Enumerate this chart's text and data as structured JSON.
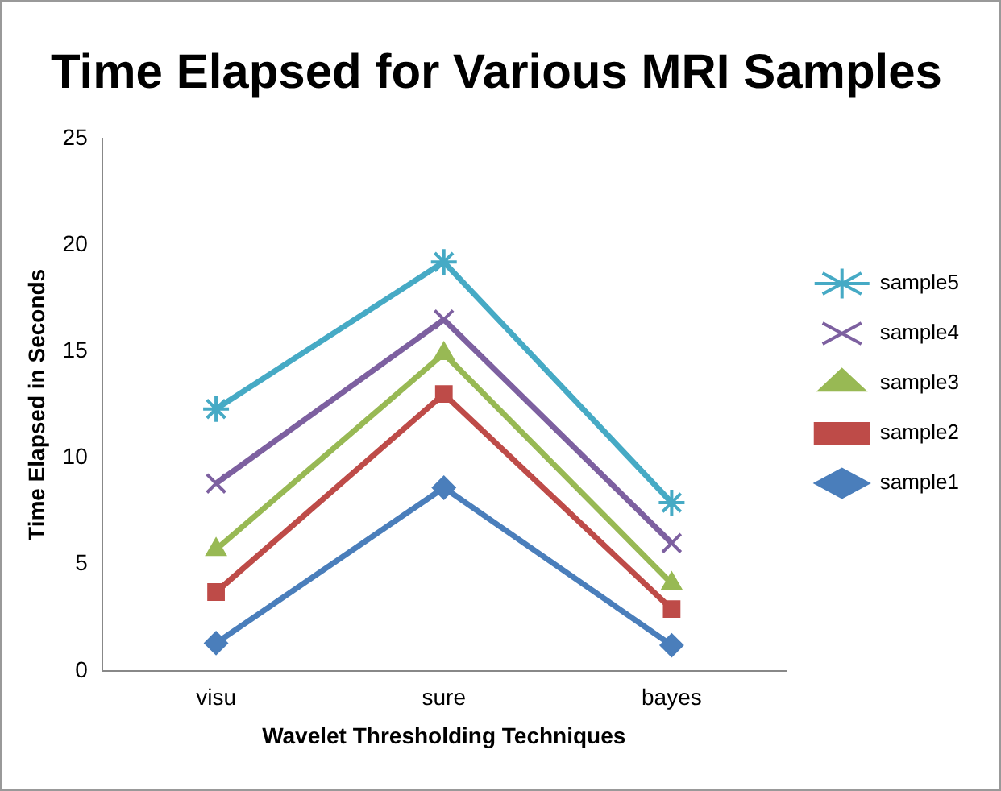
{
  "chart_data": {
    "type": "line",
    "title": "Time Elapsed for Various MRI Samples",
    "xlabel": "Wavelet Thresholding Techniques",
    "ylabel": "Time Elapsed in Seconds",
    "categories": [
      "visu",
      "sure",
      "bayes"
    ],
    "series": [
      {
        "name": "sample1",
        "color": "#4a7ebb",
        "marker": "diamond",
        "values": [
          1.3,
          8.6,
          1.2
        ]
      },
      {
        "name": "sample2",
        "color": "#be4b48",
        "marker": "square",
        "values": [
          3.7,
          13.0,
          2.9
        ]
      },
      {
        "name": "sample3",
        "color": "#98b954",
        "marker": "triangle",
        "values": [
          5.7,
          14.9,
          4.1
        ]
      },
      {
        "name": "sample4",
        "color": "#7d60a0",
        "marker": "cross",
        "values": [
          8.8,
          16.5,
          6.0
        ]
      },
      {
        "name": "sample5",
        "color": "#46aac5",
        "marker": "cross",
        "values": [
          12.3,
          19.2,
          7.9
        ]
      }
    ],
    "ylim": [
      0,
      25
    ],
    "yticks": [
      0,
      5,
      10,
      15,
      20,
      25
    ],
    "grid": false,
    "legend": "right",
    "line_style": "solid"
  }
}
